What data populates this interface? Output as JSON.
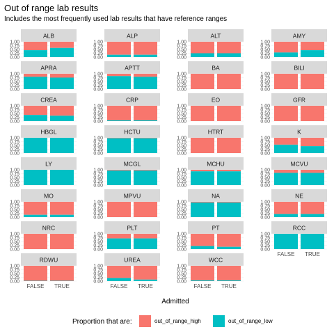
{
  "title": "Out of range lab results",
  "subtitle": "Includes the most frequently used lab results that have reference ranges",
  "chart_data": {
    "type": "bar",
    "stacked": true,
    "facet_layout": {
      "cols": 4,
      "rows": 8
    },
    "categories": [
      "FALSE",
      "TRUE"
    ],
    "xlabel": "Admitted",
    "ylabel": "",
    "yticks": [
      "0.00",
      "0.25",
      "0.50",
      "0.75",
      "1.00"
    ],
    "ylim": [
      0,
      1
    ],
    "legend": {
      "title": "Proportion that are:",
      "position": "bottom",
      "entries": [
        {
          "name": "out_of_range_high",
          "color": "#F8766D"
        },
        {
          "name": "out_of_range_low",
          "color": "#00BFC4"
        }
      ]
    },
    "panels": [
      {
        "label": "ALB",
        "low": [
          0.45,
          0.6
        ]
      },
      {
        "label": "ALP",
        "low": [
          0.15,
          0.15
        ]
      },
      {
        "label": "ALT",
        "low": [
          0.25,
          0.25
        ]
      },
      {
        "label": "AMY",
        "low": [
          0.3,
          0.45
        ]
      },
      {
        "label": "APRA",
        "low": [
          0.8,
          0.75
        ]
      },
      {
        "label": "APTT",
        "low": [
          0.85,
          0.8
        ]
      },
      {
        "label": "BA",
        "low": [
          0.0,
          0.0
        ]
      },
      {
        "label": "BILI",
        "low": [
          0.0,
          0.0
        ]
      },
      {
        "label": "CREA",
        "low": [
          0.4,
          0.35
        ]
      },
      {
        "label": "CRP",
        "low": [
          0.05,
          0.05
        ]
      },
      {
        "label": "EO",
        "low": [
          0.0,
          0.0
        ]
      },
      {
        "label": "GFR",
        "low": [
          0.0,
          0.0
        ]
      },
      {
        "label": "HBGL",
        "low": [
          1.0,
          1.0
        ]
      },
      {
        "label": "HCTU",
        "low": [
          0.97,
          0.97
        ]
      },
      {
        "label": "HTRT",
        "low": [
          0.0,
          0.0
        ]
      },
      {
        "label": "K",
        "low": [
          0.55,
          0.45
        ]
      },
      {
        "label": "LY",
        "low": [
          1.0,
          1.0
        ]
      },
      {
        "label": "MCGL",
        "low": [
          0.95,
          0.95
        ]
      },
      {
        "label": "MCHU",
        "low": [
          0.9,
          0.9
        ]
      },
      {
        "label": "MCVU",
        "low": [
          0.8,
          0.8
        ]
      },
      {
        "label": "MO",
        "low": [
          0.15,
          0.15
        ]
      },
      {
        "label": "MPVU",
        "low": [
          0.0,
          0.0
        ]
      },
      {
        "label": "NA",
        "low": [
          0.95,
          0.95
        ]
      },
      {
        "label": "NE",
        "low": [
          0.2,
          0.2
        ]
      },
      {
        "label": "NRC",
        "low": [
          0.0,
          0.0
        ]
      },
      {
        "label": "PLT",
        "low": [
          0.7,
          0.7
        ]
      },
      {
        "label": "PT",
        "low": [
          0.2,
          0.15
        ]
      },
      {
        "label": "RCC",
        "low": [
          1.0,
          1.0
        ]
      },
      {
        "label": "RDWU",
        "low": [
          0.02,
          0.02
        ]
      },
      {
        "label": "UREA",
        "low": [
          0.2,
          0.1
        ]
      },
      {
        "label": "WCC",
        "low": [
          0.05,
          0.05
        ]
      }
    ]
  }
}
